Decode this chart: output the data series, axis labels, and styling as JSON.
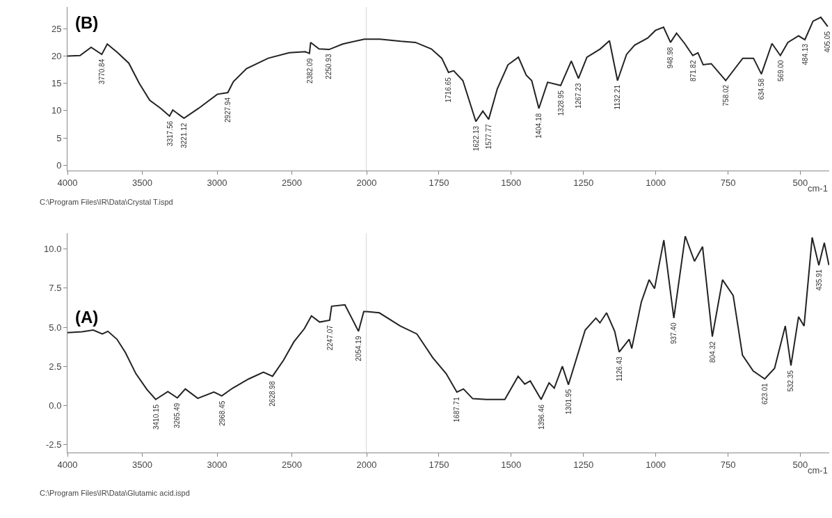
{
  "chart_data": [
    {
      "type": "line",
      "x": [
        4000,
        3916,
        3842,
        3770.84,
        3734,
        3664,
        3590,
        3520,
        3450,
        3376,
        3317.56,
        3296,
        3221.12,
        3124,
        2998,
        2927.94,
        2891,
        2803,
        2658,
        2518,
        2411,
        2382.09,
        2374,
        2318,
        2250.93,
        2160,
        2015,
        2000
      ],
      "series": [
        {
          "color": "#222222",
          "values": [
            20.0,
            20.1,
            21.6,
            20.3,
            22.2,
            20.6,
            18.7,
            15.0,
            11.9,
            10.4,
            9.0,
            10.1,
            8.6,
            10.4,
            13.0,
            13.3,
            15.3,
            17.7,
            19.6,
            20.6,
            20.8,
            20.5,
            22.5,
            21.3,
            21.2,
            22.2,
            23.1,
            23.1
          ]
        }
      ],
      "xlim": [
        4000,
        2000
      ],
      "ylim": [
        -1,
        29
      ],
      "xticks": [
        4000,
        3500,
        3000,
        2500,
        2000
      ],
      "yticks": [
        0,
        5,
        10,
        15,
        20,
        25
      ],
      "ref_lines": [
        {
          "axis": "x",
          "value": 2000,
          "color": "#c8c8c8"
        }
      ],
      "annotations": [
        "(B)",
        "C:\\Program Files\\IR\\Data\\Crystal T.ispd",
        {
          "text": "3770.84",
          "x": 3770.84,
          "y": 20.3
        },
        {
          "text": "3317.56",
          "x": 3317.56,
          "y": 9.0
        },
        {
          "text": "3221.12",
          "x": 3221.12,
          "y": 8.6
        },
        {
          "text": "2927.94",
          "x": 2927.94,
          "y": 13.3
        },
        {
          "text": "2382.09",
          "x": 2382.09,
          "y": 20.5
        },
        {
          "text": "2250.93",
          "x": 2250.93,
          "y": 21.2
        }
      ]
    },
    {
      "type": "line",
      "x": [
        2000,
        1954,
        1882,
        1831,
        1776,
        1740,
        1716.65,
        1699,
        1667,
        1622.13,
        1598,
        1577.77,
        1548,
        1511,
        1475,
        1448,
        1429,
        1404.18,
        1374,
        1328.95,
        1292,
        1267.23,
        1238,
        1192,
        1160,
        1132.21,
        1101,
        1073,
        1028,
        1001,
        973,
        948.98,
        928,
        900,
        871.82,
        854,
        836,
        808,
        758.02,
        699,
        662,
        634.58,
        598,
        569.0,
        543,
        506,
        484.13,
        456,
        429,
        405.05
      ],
      "series": [
        {
          "color": "#222222",
          "values": [
            23.1,
            23.1,
            22.7,
            22.5,
            21.3,
            19.6,
            17.0,
            17.3,
            15.5,
            8.0,
            9.9,
            8.4,
            14.0,
            18.4,
            19.8,
            16.5,
            15.5,
            10.4,
            15.2,
            14.6,
            19.1,
            15.9,
            19.8,
            21.3,
            22.8,
            15.5,
            20.3,
            22.0,
            23.3,
            24.7,
            25.3,
            22.5,
            24.2,
            22.3,
            20.1,
            20.6,
            18.4,
            18.6,
            15.5,
            19.6,
            19.6,
            16.7,
            22.3,
            20.1,
            22.5,
            23.7,
            23.0,
            26.4,
            27.1,
            25.4
          ]
        }
      ],
      "xlim": [
        2000,
        400
      ],
      "ylim": [
        -1,
        29
      ],
      "xticks": [
        1750,
        1500,
        1250,
        1000,
        750,
        500
      ],
      "tick_labels": "x",
      "xlabel": "cm-1",
      "annotations": [
        {
          "text": "1716.65",
          "x": 1716.65,
          "y": 17.0
        },
        {
          "text": "1622.13",
          "x": 1622.13,
          "y": 8.0
        },
        {
          "text": "1577.77",
          "x": 1577.77,
          "y": 8.4
        },
        {
          "text": "1404.18",
          "x": 1404.18,
          "y": 10.4
        },
        {
          "text": "1328.95",
          "x": 1328.95,
          "y": 14.6
        },
        {
          "text": "1267.23",
          "x": 1267.23,
          "y": 15.9
        },
        {
          "text": "1132.21",
          "x": 1132.21,
          "y": 15.5
        },
        {
          "text": "948.98",
          "x": 948.98,
          "y": 22.5
        },
        {
          "text": "871.82",
          "x": 871.82,
          "y": 20.1
        },
        {
          "text": "758.02",
          "x": 758.02,
          "y": 15.5
        },
        {
          "text": "634.58",
          "x": 634.58,
          "y": 16.7
        },
        {
          "text": "569.00",
          "x": 569.0,
          "y": 20.1
        },
        {
          "text": "484.13",
          "x": 484.13,
          "y": 23.0
        },
        {
          "text": "405.05",
          "x": 405.05,
          "y": 25.4
        }
      ]
    },
    {
      "type": "line",
      "x": [
        4000,
        3902,
        3828,
        3767,
        3730,
        3669,
        3613,
        3543,
        3469,
        3410.15,
        3329,
        3265.49,
        3212,
        3129,
        3021,
        2968.45,
        2896,
        2788,
        2690,
        2628.98,
        2556,
        2486,
        2416,
        2369,
        2314,
        2247.07,
        2234,
        2145,
        2054.19,
        2019,
        2000
      ],
      "series": [
        {
          "color": "#222222",
          "values": [
            4.66,
            4.71,
            4.82,
            4.57,
            4.74,
            4.23,
            3.39,
            2.04,
            1.03,
            0.39,
            0.89,
            0.49,
            1.06,
            0.46,
            0.86,
            0.62,
            1.11,
            1.7,
            2.13,
            1.87,
            2.89,
            4.07,
            4.91,
            5.72,
            5.33,
            5.45,
            6.34,
            6.43,
            4.74,
            6.0,
            6.0
          ]
        }
      ],
      "xlim": [
        4000,
        2000
      ],
      "ylim": [
        -3,
        11
      ],
      "xticks": [
        4000,
        3500,
        3000,
        2500,
        2000
      ],
      "yticks": [
        -2.5,
        {
          "value": 0,
          "label": "0.0"
        },
        2.5,
        {
          "value": 5,
          "label": "5.0"
        },
        7.5,
        {
          "value": 10,
          "label": "10.0"
        }
      ],
      "ref_lines": [
        {
          "axis": "x",
          "value": 2000,
          "color": "#c8c8c8"
        }
      ],
      "annotations": [
        "(A)",
        "C:\\Program Files\\IR\\Data\\Glutamic acid.ispd",
        {
          "text": "3410.15",
          "x": 3410.15,
          "y": 0.39
        },
        {
          "text": "3265.49",
          "x": 3265.49,
          "y": 0.49
        },
        {
          "text": "2968.45",
          "x": 2968.45,
          "y": 0.62
        },
        {
          "text": "2628.98",
          "x": 2628.98,
          "y": 1.87
        },
        {
          "text": "2247.07",
          "x": 2247.07,
          "y": 5.45
        },
        {
          "text": "2054.19",
          "x": 2054.19,
          "y": 4.74
        }
      ]
    },
    {
      "type": "line",
      "x": [
        2000,
        1956,
        1884,
        1826,
        1771,
        1725,
        1687.71,
        1665,
        1633,
        1586,
        1522,
        1476,
        1453,
        1434,
        1396.46,
        1369,
        1351,
        1323,
        1301.95,
        1244,
        1207,
        1193,
        1170,
        1142,
        1126.43,
        1092,
        1083,
        1050,
        1023,
        1004,
        972,
        937.4,
        898,
        866,
        838,
        804.32,
        769,
        732,
        700,
        663,
        623.01,
        589,
        552,
        532.35,
        506,
        487,
        459,
        435.91,
        417,
        401
      ],
      "series": [
        {
          "color": "#222222",
          "values": [
            6.0,
            5.92,
            5.08,
            4.57,
            3.05,
            2.04,
            0.86,
            1.06,
            0.44,
            0.39,
            0.39,
            1.87,
            1.37,
            1.57,
            0.39,
            1.45,
            1.11,
            2.51,
            1.33,
            4.82,
            5.58,
            5.28,
            5.92,
            4.74,
            3.42,
            4.23,
            3.64,
            6.6,
            8.03,
            7.47,
            10.56,
            5.58,
            10.81,
            9.21,
            10.14,
            4.4,
            8.03,
            7.02,
            3.22,
            2.21,
            1.7,
            2.38,
            5.08,
            2.55,
            5.67,
            5.08,
            10.73,
            8.96,
            10.39,
            8.96
          ]
        }
      ],
      "xlim": [
        2000,
        400
      ],
      "ylim": [
        -3,
        11
      ],
      "xticks": [
        1750,
        1500,
        1250,
        1000,
        750,
        500
      ],
      "tick_labels": "x",
      "xlabel": "cm-1",
      "annotations": [
        {
          "text": "1687.71",
          "x": 1687.71,
          "y": 0.86
        },
        {
          "text": "1396.46",
          "x": 1396.46,
          "y": 0.39
        },
        {
          "text": "1301.95",
          "x": 1301.95,
          "y": 1.33
        },
        {
          "text": "1126.43",
          "x": 1126.43,
          "y": 3.42
        },
        {
          "text": "937.40",
          "x": 937.4,
          "y": 5.58
        },
        {
          "text": "804.32",
          "x": 804.32,
          "y": 4.4
        },
        {
          "text": "623.01",
          "x": 623.01,
          "y": 1.7
        },
        {
          "text": "532.35",
          "x": 532.35,
          "y": 2.55
        },
        {
          "text": "435.91",
          "x": 435.91,
          "y": 8.96
        }
      ]
    }
  ]
}
